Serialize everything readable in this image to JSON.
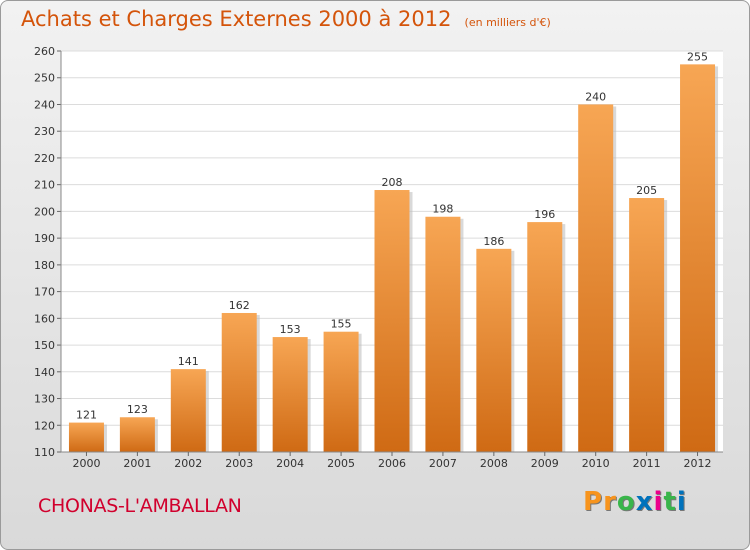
{
  "title": "Achats et Charges Externes 2000 à 2012",
  "subtitle": "(en milliers d'€)",
  "footer": {
    "place": "CHONAS-L'AMBALLAN",
    "logo": "Proxiti"
  },
  "colors": {
    "bar_top": "#f7a654",
    "bar_bottom": "#cf6a14",
    "title": "#d4540a",
    "place": "#d1002d",
    "logo_letters": [
      "#f7941d",
      "#f7941d",
      "#39b54a",
      "#0072bc",
      "#ec008c",
      "#39b54a",
      "#0072bc"
    ]
  },
  "chart_data": {
    "type": "bar",
    "categories": [
      "2000",
      "2001",
      "2002",
      "2003",
      "2004",
      "2005",
      "2006",
      "2007",
      "2008",
      "2009",
      "2010",
      "2011",
      "2012"
    ],
    "values": [
      121,
      123,
      141,
      162,
      153,
      155,
      208,
      198,
      186,
      196,
      240,
      205,
      255
    ],
    "ylim": [
      110,
      260
    ],
    "yticks": [
      110,
      120,
      130,
      140,
      150,
      160,
      170,
      180,
      190,
      200,
      210,
      220,
      230,
      240,
      250,
      260
    ],
    "grid": true,
    "data_labels": true
  }
}
